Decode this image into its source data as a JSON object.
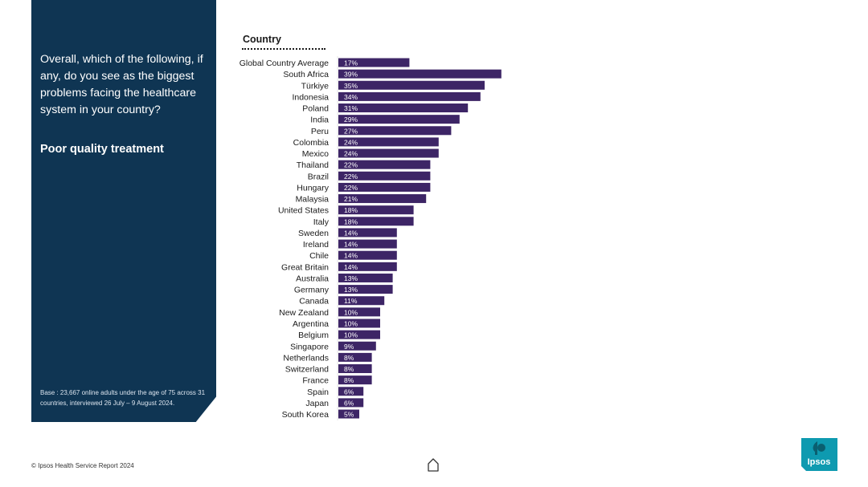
{
  "panel": {
    "question": "Overall, which of the following, if any, do you see as the biggest problems facing the healthcare system in your country?",
    "subtopic": "Poor quality treatment",
    "base_note": "Base : 23,667 online adults under the age of 75 across 31 countries, interviewed 26 July – 9 August 2024."
  },
  "chart_header": "Country",
  "footer": {
    "copyright": "© Ipsos Health Service Report 2024",
    "logo_text": "Ipsos"
  },
  "colors": {
    "panel_bg": "#0f3553",
    "bar": "#3d2566",
    "logo_bg": "#0e9ab0"
  },
  "icons": [
    "home-icon"
  ],
  "chart_data": {
    "type": "bar",
    "orientation": "horizontal",
    "categories": [
      "Global Country Average",
      "South Africa",
      "Türkiye",
      "Indonesia",
      "Poland",
      "India",
      "Peru",
      "Colombia",
      "Mexico",
      "Thailand",
      "Brazil",
      "Hungary",
      "Malaysia",
      "United States",
      "Italy",
      "Sweden",
      "Ireland",
      "Chile",
      "Great Britain",
      "Australia",
      "Germany",
      "Canada",
      "New Zealand",
      "Argentina",
      "Belgium",
      "Singapore",
      "Netherlands",
      "Switzerland",
      "France",
      "Spain",
      "Japan",
      "South Korea"
    ],
    "values": [
      17,
      39,
      35,
      34,
      31,
      29,
      27,
      24,
      24,
      22,
      22,
      22,
      21,
      18,
      18,
      14,
      14,
      14,
      14,
      13,
      13,
      11,
      10,
      10,
      10,
      9,
      8,
      8,
      8,
      6,
      6,
      5
    ],
    "value_labels": [
      "17%",
      "39%",
      "35%",
      "34%",
      "31%",
      "29%",
      "27%",
      "24%",
      "24%",
      "22%",
      "22%",
      "22%",
      "21%",
      "18%",
      "18%",
      "14%",
      "14%",
      "14%",
      "14%",
      "13%",
      "13%",
      "11%",
      "10%",
      "10%",
      "10%",
      "9%",
      "8%",
      "8%",
      "8%",
      "6%",
      "6%",
      "5%"
    ],
    "unit": "%",
    "title": "",
    "xlabel": "",
    "ylabel": "Country",
    "grid": false,
    "legend": "none"
  }
}
